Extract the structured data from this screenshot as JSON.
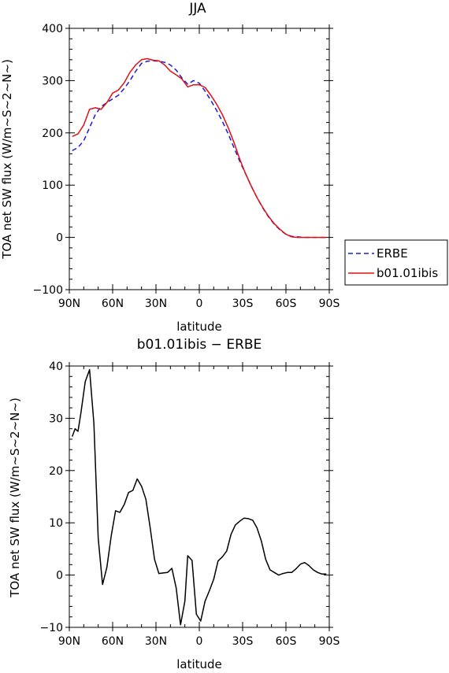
{
  "chart_data": [
    {
      "type": "line",
      "title": "JJA",
      "xlabel": "latitude",
      "ylabel": "TOA net SW flux (W/m~S~2~N~)",
      "xlim": [
        90,
        -90
      ],
      "ylim": [
        -100,
        400
      ],
      "xticks": [
        "90N",
        "60N",
        "30N",
        "0",
        "30S",
        "60S",
        "90S"
      ],
      "yticks": [
        "400",
        "300",
        "200",
        "100",
        "0",
        "−100"
      ],
      "legend_position": "right",
      "series": [
        {
          "name": "ERBE",
          "color": "#1a1adc",
          "dash": "dashed",
          "x": [
            88,
            84,
            80,
            76,
            72,
            68,
            64,
            60,
            56,
            52,
            48,
            44,
            40,
            36,
            32,
            28,
            24,
            20,
            16,
            12,
            8,
            4,
            0,
            -4,
            -8,
            -12,
            -16,
            -20,
            -24,
            -28,
            -32,
            -36,
            -40,
            -44,
            -48,
            -52,
            -56,
            -60,
            -64,
            -68,
            -72,
            -76,
            -80,
            -84,
            -88
          ],
          "y": [
            166,
            172,
            185,
            210,
            235,
            250,
            258,
            265,
            272,
            285,
            300,
            318,
            333,
            337,
            338,
            337,
            335,
            330,
            320,
            305,
            293,
            300,
            295,
            280,
            262,
            243,
            222,
            198,
            172,
            146,
            122,
            98,
            76,
            56,
            39,
            25,
            14,
            6,
            2,
            1,
            0,
            0,
            0,
            0,
            0
          ]
        },
        {
          "name": "b01.01ibis",
          "color": "#e01010",
          "dash": "solid",
          "x": [
            88,
            84,
            80,
            76,
            72,
            68,
            64,
            60,
            56,
            52,
            48,
            44,
            40,
            36,
            32,
            28,
            24,
            20,
            16,
            12,
            8,
            4,
            0,
            -4,
            -8,
            -12,
            -16,
            -20,
            -24,
            -28,
            -32,
            -36,
            -40,
            -44,
            -48,
            -52,
            -56,
            -60,
            -64,
            -68,
            -72,
            -76,
            -80,
            -84,
            -88
          ],
          "y": [
            193,
            198,
            215,
            245,
            248,
            245,
            258,
            276,
            282,
            296,
            316,
            330,
            340,
            342,
            339,
            338,
            330,
            318,
            311,
            303,
            288,
            292,
            292,
            287,
            272,
            255,
            235,
            210,
            182,
            150,
            122,
            98,
            76,
            57,
            40,
            26,
            15,
            6,
            1,
            0,
            0,
            0,
            0,
            0,
            0
          ]
        }
      ]
    },
    {
      "type": "line",
      "title": "b01.01ibis − ERBE",
      "xlabel": "latitude",
      "ylabel": "TOA net SW flux (W/m~S~2~N~)",
      "xlim": [
        90,
        -90
      ],
      "ylim": [
        -10,
        40
      ],
      "xticks": [
        "90N",
        "60N",
        "30N",
        "0",
        "30S",
        "60S",
        "90S"
      ],
      "yticks": [
        "40",
        "30",
        "20",
        "10",
        "0",
        "−10"
      ],
      "series": [
        {
          "color": "#000000",
          "dash": "solid",
          "x": [
            88,
            86,
            84,
            82,
            79,
            76,
            73,
            70,
            67,
            64,
            61,
            58,
            55,
            52,
            49,
            46,
            43,
            40,
            37,
            34,
            31,
            28,
            25,
            22,
            19,
            16,
            13,
            10,
            8,
            5,
            2,
            -1,
            -4,
            -7,
            -10,
            -13,
            -16,
            -19,
            -22,
            -25,
            -28,
            -31,
            -34,
            -37,
            -40,
            -43,
            -46,
            -49,
            -52,
            -55,
            -58,
            -61,
            -64,
            -67,
            -70,
            -73,
            -76,
            -79,
            -82,
            -85,
            -88
          ],
          "y": [
            26.5,
            28,
            27.5,
            31,
            37,
            39.3,
            29,
            7,
            -1.8,
            1.5,
            7.5,
            12.3,
            12,
            13.5,
            15.8,
            16.2,
            18.4,
            17,
            14.5,
            9,
            3,
            0.3,
            0.4,
            0.5,
            1.3,
            -2.5,
            -9.5,
            -5,
            3.7,
            2.8,
            -7.5,
            -8.8,
            -5,
            -3,
            -0.8,
            2.7,
            3.5,
            4.6,
            7.8,
            9.6,
            10.3,
            10.9,
            10.8,
            10.5,
            9,
            6.5,
            3,
            1,
            0.5,
            0,
            0.3,
            0.5,
            0.5,
            1.2,
            2.1,
            2.4,
            1.8,
            1,
            0.5,
            0.2,
            0.2
          ]
        }
      ]
    }
  ]
}
